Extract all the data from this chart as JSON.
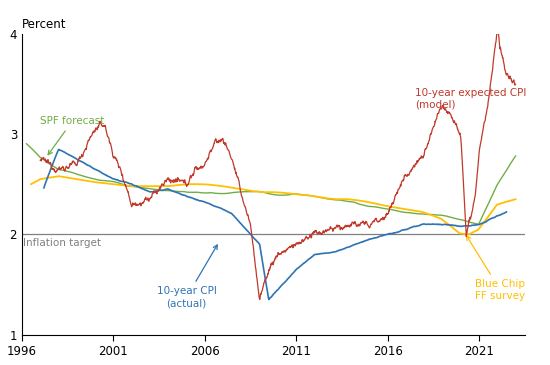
{
  "ylabel": "Percent",
  "ylim": [
    1,
    4
  ],
  "yticks": [
    1,
    2,
    3,
    4
  ],
  "inflation_target": 2.0,
  "inflation_target_label": "Inflation target",
  "colors": {
    "model": "#c0392b",
    "actual": "#2e74b5",
    "spf": "#70ad47",
    "bluechip": "#ffc000"
  },
  "xmin": 1996,
  "xmax": 2023.5,
  "xticks": [
    1996,
    2001,
    2006,
    2011,
    2016,
    2021
  ]
}
